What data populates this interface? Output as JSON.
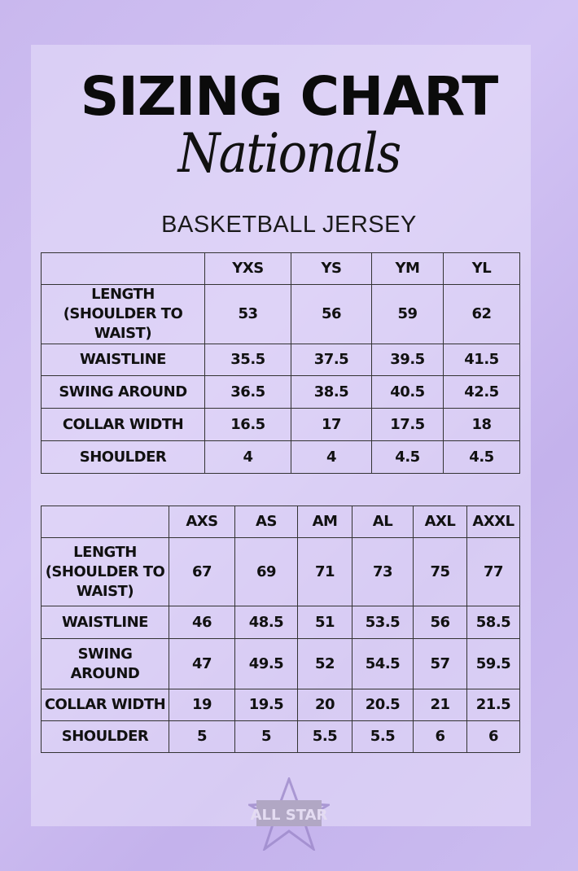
{
  "title": "SIZING CHART",
  "script_title": "Nationals",
  "subtitle": "BASKETBALL JERSEY",
  "youth_table": {
    "headers": [
      "",
      "YXS",
      "YS",
      "YM",
      "YL"
    ],
    "rows": [
      {
        "label": "LENGTH (SHOULDER TO WAIST)",
        "values": [
          "53",
          "56",
          "59",
          "62"
        ]
      },
      {
        "label": "WAISTLINE",
        "values": [
          "35.5",
          "37.5",
          "39.5",
          "41.5"
        ]
      },
      {
        "label": "SWING AROUND",
        "values": [
          "36.5",
          "38.5",
          "40.5",
          "42.5"
        ]
      },
      {
        "label": "COLLAR WIDTH",
        "values": [
          "16.5",
          "17",
          "17.5",
          "18"
        ]
      },
      {
        "label": "SHOULDER",
        "values": [
          "4",
          "4",
          "4.5",
          "4.5"
        ]
      }
    ]
  },
  "adult_table": {
    "headers": [
      "",
      "AXS",
      "AS",
      "AM",
      "AL",
      "AXL",
      "AXXL"
    ],
    "rows": [
      {
        "label": "LENGTH (SHOULDER TO WAIST)",
        "values": [
          "67",
          "69",
          "71",
          "73",
          "75",
          "77"
        ]
      },
      {
        "label": "WAISTLINE",
        "values": [
          "46",
          "48.5",
          "51",
          "53.5",
          "56",
          "58.5"
        ]
      },
      {
        "label": "SWING AROUND",
        "values": [
          "47",
          "49.5",
          "52",
          "54.5",
          "57",
          "59.5"
        ]
      },
      {
        "label": "COLLAR WIDTH",
        "values": [
          "19",
          "19.5",
          "20",
          "20.5",
          "21",
          "21.5"
        ]
      },
      {
        "label": "SHOULDER",
        "values": [
          "5",
          "5",
          "5.5",
          "5.5",
          "6",
          "6"
        ]
      }
    ]
  },
  "logo": {
    "text": "ALL STAR",
    "icon": "star-logo"
  },
  "colors": {
    "background": "#c9b8ee",
    "text": "#111111",
    "border": "#333333"
  }
}
